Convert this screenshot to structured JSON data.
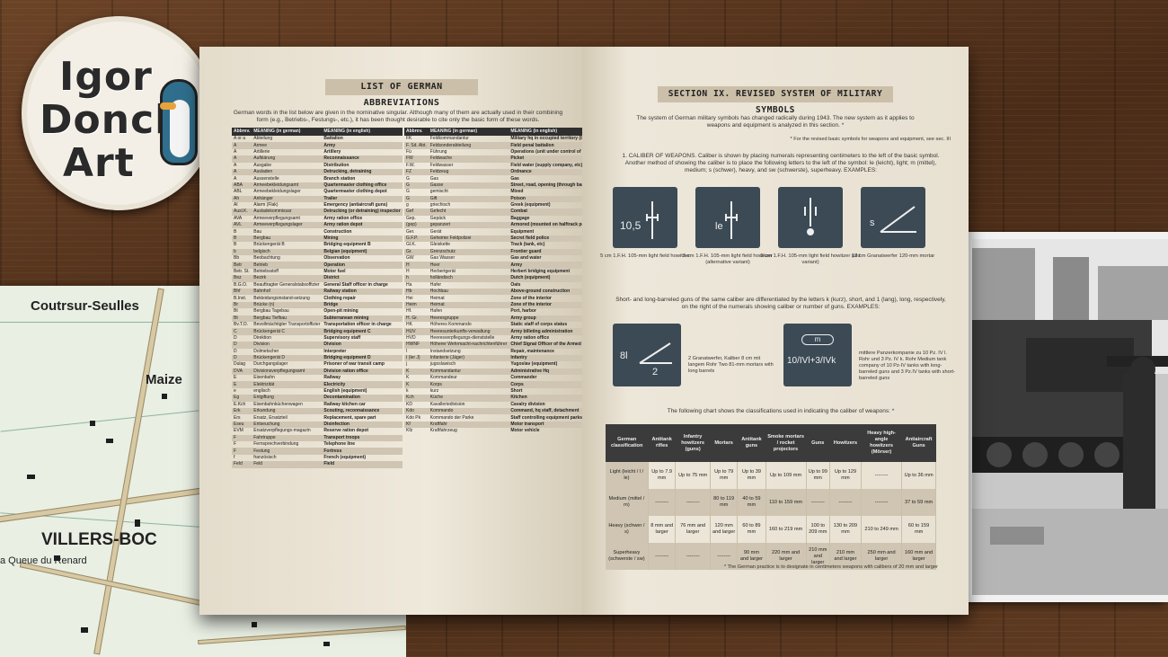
{
  "logo": {
    "lines": [
      "Igor",
      "Donchik",
      "Art"
    ]
  },
  "map": {
    "labels": [
      "Coutrsur-Seulles",
      "Maize",
      "VILLERS-BOC",
      "a Queue du Renard"
    ]
  },
  "left_page": {
    "title": "LIST OF GERMAN ABBREVIATIONS",
    "intro": "German words in the list below are given in the nominative singular. Although many of them are actually used in their combining form (e.g., Betriebs-, Festungs-, etc.), it has been thought desirable to cite only the basic form of these words.",
    "headers": [
      "Abbrev.",
      "MEANING (in german)",
      "MEANING (in english)"
    ],
    "col1": [
      [
        "A or a",
        "Abteilung",
        "Battalion"
      ],
      [
        "A",
        "Armee",
        "Army"
      ],
      [
        "A",
        "Artillerie",
        "Artillery"
      ],
      [
        "A",
        "Aufklärung",
        "Reconnaissance"
      ],
      [
        "A",
        "Ausgabe",
        "Distribution"
      ],
      [
        "A",
        "Ausladen",
        "Detrucking, detraining"
      ],
      [
        "A",
        "Aussenstelle",
        "Branch station"
      ],
      [
        "ABA",
        "Armeebekleidungsamt",
        "Quartermaster clothing office"
      ],
      [
        "ABL",
        "Armeebekleidungslager",
        "Quartermaster clothing depot"
      ],
      [
        "Ah",
        "Anhänger",
        "Trailer"
      ],
      [
        "Al",
        "Alarm (Flak)",
        "Emergency (antiaircraft guns)"
      ],
      [
        "Ausl.K.",
        "Ausladekommissar",
        "Detrucking (or detraining) inspector"
      ],
      [
        "AVA",
        "Armeeverpflegungsamt",
        "Army ration office"
      ],
      [
        "AVL",
        "Armeeverpflegungslager",
        "Army ration depot"
      ],
      [
        "B",
        "Bau",
        "Construction"
      ],
      [
        "B",
        "Bergbau",
        "Mining"
      ],
      [
        "B",
        "Brückengerät B",
        "Bridging equipment B"
      ],
      [
        "b",
        "belgisch",
        "Belgian (equipment)"
      ],
      [
        "Bb",
        "Beobachtung",
        "Observation"
      ],
      [
        "Betr",
        "Betrieb",
        "Operation"
      ],
      [
        "Betr. St.",
        "Betriebsstoff",
        "Motor fuel"
      ],
      [
        "Bez",
        "Bezirk",
        "District"
      ],
      [
        "B.G.O.",
        "Beauftragter Generalstabsoffizier",
        "General Staff officer in charge"
      ],
      [
        "Bhf",
        "Bahnhof",
        "Railway station"
      ],
      [
        "B.Inst.",
        "Bekleidungsinstand-setzung",
        "Clothing repair"
      ],
      [
        "Br",
        "Brücke (n)",
        "Bridge"
      ],
      [
        "Bt",
        "Bergbau Tagebau",
        "Open-pit mining"
      ],
      [
        "Bt",
        "Bergbau Tiefbau",
        "Subterranean mining"
      ],
      [
        "Bv.T.O.",
        "Bevollmächtigter Transportoffizier",
        "Transportation officer in charge"
      ],
      [
        "C",
        "Brückengerät C",
        "Bridging equipment C"
      ],
      [
        "D",
        "Direktion",
        "Supervisory staff"
      ],
      [
        "D",
        "Division",
        "Division"
      ],
      [
        "D",
        "Dolmetscher",
        "Interpreter"
      ],
      [
        "D",
        "Brückengerät D",
        "Bridging equipment D"
      ],
      [
        "Dulag",
        "Durchgangslager",
        "Prisoner of war transit camp"
      ],
      [
        "DVA",
        "Divisionsverpflegungsamt",
        "Division ration office"
      ],
      [
        "E",
        "Eisenbahn",
        "Railway"
      ],
      [
        "E",
        "Elektrizität",
        "Electricity"
      ],
      [
        "e",
        "englisch",
        "English (equipment)"
      ],
      [
        "Eg",
        "Entgiftung",
        "Decontamination"
      ],
      [
        "E.Kch",
        "Eisenbahnküchenwagen",
        "Railway kitchen car"
      ],
      [
        "Erk",
        "Erkundung",
        "Scouting, reconnaissance"
      ],
      [
        "Ers",
        "Ersatz, Ersatzteil",
        "Replacement, spare part"
      ],
      [
        "Eseu",
        "Entseuchung",
        "Disinfection"
      ],
      [
        "EVM",
        "Ersatzverpflegungs-magazin",
        "Reserve ration depot"
      ],
      [
        "F",
        "Fahrtruppe",
        "Transport troops"
      ],
      [
        "F",
        "Fernsprechverbindung",
        "Telephone line"
      ],
      [
        "F",
        "Festung",
        "Fortress"
      ],
      [
        "f",
        "französisch",
        "French (equipment)"
      ],
      [
        "Feld",
        "Feld",
        "Field"
      ]
    ],
    "col2": [
      [
        "FK",
        "Feldkommandantur",
        "Military hq in occupied territory (brigade status)"
      ],
      [
        "F. Sd. Abt.",
        "Feldsonderabteilung",
        "Field penal battalion"
      ],
      [
        "Fü",
        "Führung",
        "Operations (unit under control of the High Command of the Army)"
      ],
      [
        "FW",
        "Feldwache",
        "Picket"
      ],
      [
        "F.W.",
        "Feldwasser",
        "Field water (supply company, etc)"
      ],
      [
        "FZ",
        "Feldzeug",
        "Ordnance"
      ],
      [
        "G",
        "Gas",
        "Gas"
      ],
      [
        "G",
        "Gasse",
        "Street, road, opening (through barbed wire, etc)"
      ],
      [
        "G",
        "gemischt",
        "Mixed"
      ],
      [
        "G",
        "Gift",
        "Poison"
      ],
      [
        "g",
        "griechisch",
        "Greek (equipment)"
      ],
      [
        "Gef",
        "Gefecht",
        "Combat"
      ],
      [
        "Gep.",
        "Gepäck",
        "Baggage"
      ],
      [
        "(gep)",
        "gepanzert",
        "Armored (mounted on halftrack personnel carrier)"
      ],
      [
        "Ger.",
        "Gerät",
        "Equipment"
      ],
      [
        "G.F.P.",
        "Geheime Feldpolizei",
        "Secret field police"
      ],
      [
        "Gl.K.",
        "Gleiskette",
        "Track (tank, etc)"
      ],
      [
        "Gr.",
        "Grenzschutz",
        "Frontier guard"
      ],
      [
        "GW",
        "Gas Wasser",
        "Gas and water"
      ],
      [
        "H",
        "Heer",
        "Army"
      ],
      [
        "H",
        "Herbertgerät",
        "Herbert bridging equipment"
      ],
      [
        "h",
        "holländisch",
        "Dutch (equipment)"
      ],
      [
        "Ha",
        "Hafer",
        "Oats"
      ],
      [
        "Hb",
        "Hochbau",
        "Above-ground construction"
      ],
      [
        "Hei",
        "Heimat",
        "Zone of the interior"
      ],
      [
        "Heim",
        "Heimat",
        "Zone of the interior"
      ],
      [
        "Hf.",
        "Hafen",
        "Port, harbor"
      ],
      [
        "H. Gr.",
        "Heeresgruppe",
        "Army group"
      ],
      [
        "HK",
        "Höheres Kommando",
        "Static staff of corps status"
      ],
      [
        "HUV",
        "Heeresunterkunfts-verwaltung",
        "Army billeting administration"
      ],
      [
        "HVD",
        "Heeresverpflegungs-dienststelle",
        "Army ration office"
      ],
      [
        "HWNF",
        "Höherer Wehrmacht-nachrichtenführer",
        "Chief Signal Officer of the Armed Forces"
      ],
      [
        "I",
        "Instandsetzung",
        "Repair, maintenance"
      ],
      [
        "I (ler J)",
        "Infanterie (Jäger)",
        "Infantry"
      ],
      [
        "j",
        "jugoslawisch",
        "Yugoslav (equipment)"
      ],
      [
        "K",
        "Kommandantur",
        "Administrative Hq"
      ],
      [
        "K",
        "Kommandeur",
        "Commander"
      ],
      [
        "K",
        "Korps",
        "Corps"
      ],
      [
        "k",
        "kurz",
        "Short"
      ],
      [
        "Kch",
        "Küche",
        "Kitchen"
      ],
      [
        "KD",
        "Kavalleriedivision",
        "Cavalry division"
      ],
      [
        "Kdo",
        "Kommando",
        "Command, hq staff, detachment"
      ],
      [
        "Kdo Pk",
        "Kommando der Parke",
        "Staff controlling equipment parks"
      ],
      [
        "Kf",
        "Kraftfahr",
        "Motor transport"
      ],
      [
        "Kfz",
        "Kraftfahrzeug",
        "Motor vehicle"
      ]
    ]
  },
  "right_page": {
    "title": "SECTION IX. REVISED SYSTEM OF MILITARY SYMBOLS",
    "intro": "The system of German military symbols has changed radically during 1943. The new system as it applies to weapons and equipment is analyzed in this section. *",
    "footnote1": "* For the revised basic symbols for weapons and equipment, see sec. III",
    "caliber_text": "1. CALIBER OF WEAPONS. Caliber is shown by placing numerals representing centimeters to the left of the basic symbol. Another method of showing the caliber is to place the following letters to the left of the symbol: le (leicht), light; m (mittel), medium; s (schwer), heavy, and sw (schwerste), superheavy. EXAMPLES:",
    "symbols": [
      {
        "label": "10,5",
        "caption": "5 cm 1.F.H. 105-mm light field howitzer"
      },
      {
        "label": "le",
        "caption": "5 cm 1.F.H. 105-mm light field howitzer (alternative variant)"
      },
      {
        "label": "",
        "caption": "5 cm 1.F.H. 105-mm light field howitzer (old variant)"
      },
      {
        "label": "s",
        "caption": "12 cm Granatwerfer 120-mm mortar"
      }
    ],
    "short_long_text": "Short- and long-barreled guns of the same caliber are differentiated by the letters k (kurz), short, and 1 (lang), long, respectively, on the right of the numerals showing caliber or number of guns. EXAMPLES:",
    "ex1": {
      "label_a": "8l",
      "label_b": "2",
      "caption": "2 Granatwerfer, Kaliber 8 cm mit langem Rohr Two 81-mm mortars with long barrels"
    },
    "ex2": {
      "label_top": "m",
      "label": "10/IVl+3/IVk",
      "caption": "mittlere Panzerkompanie zu 10 Pz. IV l. Rohr und 3 Pz. IV k. Rohr Medium tank company of 10 Pz-IV tanks with long-barreled guns and 3 Pz.IV tanks with short-barreled guns"
    },
    "chart_intro": "The following chart shows the classifications used in indicating the caliber of weapons: *",
    "table_headers": [
      "German classification",
      "Antitank rifles",
      "Infantry howitzers (guns)",
      "Mortars",
      "Antitank guns",
      "Smoke mortars / rocket projectors",
      "Guns",
      "Howitzers",
      "Heavy high-angle howitzers (Mörser)",
      "Antiaircraft Guns"
    ],
    "table_rows": [
      [
        "Light (leicht / l / le)",
        "Up to 7.9 mm",
        "Up to 75 mm",
        "Up to 79 mm",
        "Up to 39 mm",
        "Up to 109 mm",
        "Up to 99 mm",
        "Up to 129 mm",
        "--------",
        "Up to 36 mm"
      ],
      [
        "Medium (mittel / m)",
        "--------",
        "--------",
        "80 to 119 mm",
        "40 to 59 mm",
        "110 to 159 mm",
        "--------",
        "--------",
        "--------",
        "37 to 59 mm"
      ],
      [
        "Heavy (schwer / s)",
        "8 mm and larger",
        "76 mm and larger",
        "120 mm and larger",
        "60 to 89 mm",
        "160 to 219 mm",
        "100 to 209 mm",
        "130 to 209 mm",
        "210 to 249 mm",
        "60 to 159 mm"
      ],
      [
        "Superheavy (schwerste / sw)",
        "--------",
        "--------",
        "--------",
        "90 mm and larger",
        "220 mm and larger",
        "210 mm and larger",
        "210 mm and larger",
        "250 mm and larger",
        "160 mm and larger"
      ]
    ],
    "footnote2": "* The German practice is to designate in centimeters weapons with calibers of 20 mm and larger"
  },
  "colors": {
    "wood": "#5a3820",
    "paper": "#ebe4d5",
    "symbol_bg": "#3b4a55",
    "table_header": "#2f2f2f"
  }
}
